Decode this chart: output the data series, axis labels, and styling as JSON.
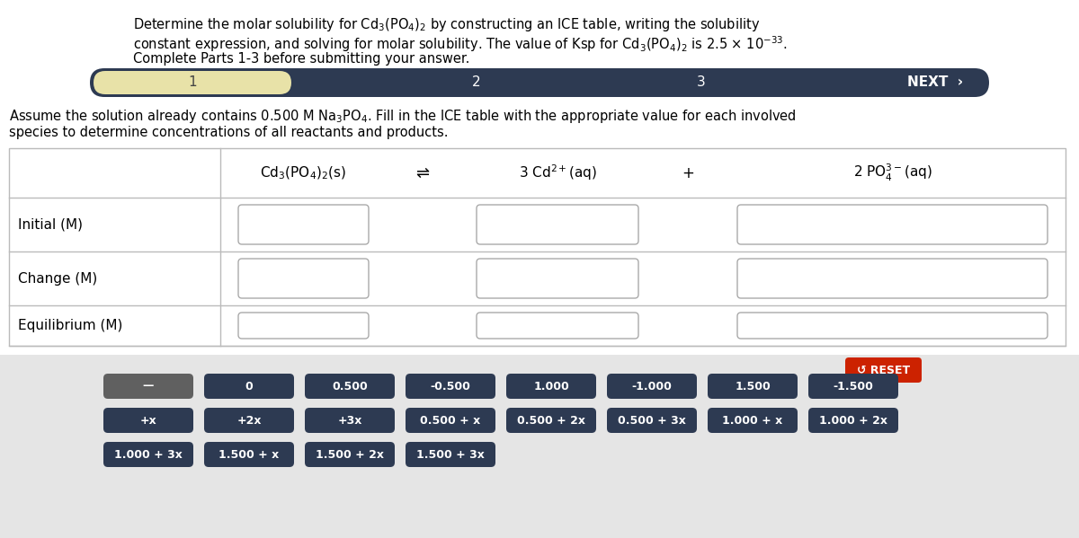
{
  "bg_color": "#e5e5e5",
  "white": "#ffffff",
  "dark_navy": "#2d3a52",
  "dark_gray": "#606060",
  "red_button": "#cc2200",
  "yellow_tab": "#e8e2a8",
  "title_line1": "Determine the molar solubility for Cd$_3$(PO$_4$)$_2$ by constructing an ICE table, writing the solubility",
  "title_line2": "constant expression, and solving for molar solubility. The value of Ksp for Cd$_3$(PO$_4$)$_2$ is 2.5 × 10$^{-33}$.",
  "title_line3": "Complete Parts 1-3 before submitting your answer.",
  "assume_line1": "Assume the solution already contains 0.500 M Na$_3$PO$_4$. Fill in the ICE table with the appropriate value for each involved",
  "assume_line2": "species to determine concentrations of all reactants and products.",
  "row_labels": [
    "Initial (M)",
    "Change (M)",
    "Equilibrium (M)"
  ],
  "buttons_row1": [
    "—",
    "0",
    "0.500",
    "-0.500",
    "1.000",
    "-1.000",
    "1.500",
    "-1.500"
  ],
  "buttons_row2": [
    "+x",
    "+2x",
    "+3x",
    "0.500 + x",
    "0.500 + 2x",
    "0.500 + 3x",
    "1.000 + x",
    "1.000 + 2x"
  ],
  "buttons_row3": [
    "1.000 + 3x",
    "1.500 + x",
    "1.500 + 2x",
    "1.500 + 3x"
  ]
}
